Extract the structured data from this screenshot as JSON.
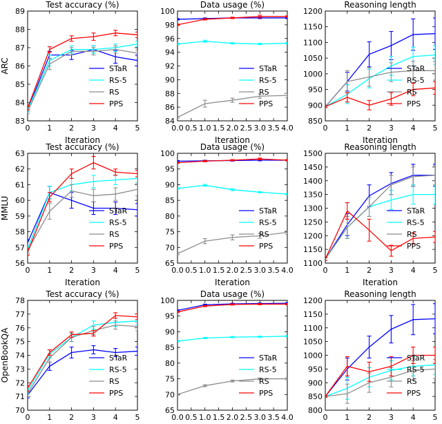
{
  "figure": {
    "row_labels": [
      "ARC",
      "MMLU",
      "OpenBookQA"
    ]
  },
  "legend": [
    {
      "name": "STaR",
      "color": "#0000ff"
    },
    {
      "name": "RS-5",
      "color": "#00ffff"
    },
    {
      "name": "RS",
      "color": "#8c8c8c"
    },
    {
      "name": "PPS",
      "color": "#ff0000"
    }
  ],
  "chart_data": [
    {
      "type": "line",
      "row_label": "ARC",
      "title": "Test accuracy (%)",
      "xlabel": "Iteration",
      "ylabel": "",
      "x": [
        0,
        1,
        2,
        3,
        4,
        5
      ],
      "xlim": [
        0,
        5
      ],
      "ylim": [
        83,
        89
      ],
      "xticks": [
        0,
        1,
        2,
        3,
        4,
        5
      ],
      "xtick_labels": [
        "0",
        "1",
        "2",
        "3",
        "4",
        "5"
      ],
      "yticks": [
        83,
        84,
        85,
        86,
        87,
        88,
        89
      ],
      "ytick_labels": [
        "83",
        "84",
        "85",
        "86",
        "87",
        "88",
        "89"
      ],
      "series": [
        {
          "name": "STaR",
          "values": [
            83.6,
            86.6,
            86.6,
            86.9,
            86.5,
            86.3
          ],
          "errors": [
            0.1,
            0.2,
            0.25,
            0.2,
            0.35,
            0.3
          ]
        },
        {
          "name": "RS-5",
          "values": [
            83.6,
            86.3,
            86.9,
            86.9,
            87.0,
            87.2
          ],
          "errors": [
            0.1,
            0.3,
            0.2,
            0.2,
            0.2,
            0.15
          ]
        },
        {
          "name": "RS",
          "values": [
            83.5,
            86.1,
            86.8,
            86.8,
            86.9,
            86.7
          ],
          "errors": [
            0.1,
            0.3,
            0.2,
            0.2,
            0.2,
            0.15
          ]
        },
        {
          "name": "PPS",
          "values": [
            83.7,
            86.9,
            87.5,
            87.6,
            87.8,
            87.7
          ],
          "errors": [
            0.1,
            0.15,
            0.15,
            0.2,
            0.15,
            0.15
          ]
        }
      ]
    },
    {
      "type": "line",
      "row_label": "ARC",
      "title": "Data usage (%)",
      "xlabel": "Iteration",
      "ylabel": "",
      "x": [
        0,
        1,
        2,
        3,
        4
      ],
      "xlim": [
        0,
        4
      ],
      "ylim": [
        84,
        100
      ],
      "xticks": [
        0,
        0.5,
        1,
        1.5,
        2,
        2.5,
        3,
        3.5,
        4
      ],
      "xtick_labels": [
        "0.0",
        "0.5",
        "1.0",
        "1.5",
        "2.0",
        "2.5",
        "3.0",
        "3.5",
        "4.0"
      ],
      "yticks": [
        84,
        86,
        88,
        90,
        92,
        94,
        96,
        98,
        100
      ],
      "ytick_labels": [
        "84",
        "86",
        "88",
        "90",
        "92",
        "94",
        "96",
        "98",
        "100"
      ],
      "series": [
        {
          "name": "STaR",
          "values": [
            98.8,
            98.9,
            99.0,
            99.0,
            99.0
          ],
          "errors": [
            0.1,
            0.1,
            0.1,
            0.1,
            0.1
          ]
        },
        {
          "name": "RS-5",
          "values": [
            95.2,
            95.6,
            95.3,
            95.2,
            95.3
          ],
          "errors": [
            0.1,
            0.15,
            0.1,
            0.1,
            0.1
          ]
        },
        {
          "name": "RS",
          "values": [
            84.5,
            86.5,
            87.0,
            87.6,
            87.7
          ],
          "errors": [
            0.1,
            0.5,
            0.3,
            0.3,
            0.3
          ]
        },
        {
          "name": "PPS",
          "values": [
            98.0,
            98.8,
            99.0,
            99.2,
            99.2
          ],
          "errors": [
            0.1,
            0.1,
            0.1,
            0.2,
            0.1
          ]
        }
      ]
    },
    {
      "type": "line",
      "row_label": "ARC",
      "title": "Reasoning length",
      "xlabel": "Iteration",
      "ylabel": "",
      "x": [
        0,
        1,
        2,
        3,
        4,
        5
      ],
      "xlim": [
        0,
        5
      ],
      "ylim": [
        850,
        1200
      ],
      "xticks": [
        0,
        1,
        2,
        3,
        4,
        5
      ],
      "xtick_labels": [
        "0",
        "1",
        "2",
        "3",
        "4",
        "5"
      ],
      "yticks": [
        850,
        900,
        950,
        1000,
        1050,
        1100,
        1150,
        1200
      ],
      "ytick_labels": [
        "850",
        "900",
        "950",
        "1000",
        "1050",
        "1100",
        "1150",
        "1200"
      ],
      "series": [
        {
          "name": "STaR",
          "values": [
            895,
            975,
            1062,
            1090,
            1125,
            1128
          ],
          "errors": [
            3,
            30,
            40,
            45,
            50,
            50
          ]
        },
        {
          "name": "RS-5",
          "values": [
            895,
            935,
            985,
            1025,
            1055,
            1060
          ],
          "errors": [
            3,
            30,
            30,
            30,
            30,
            30
          ]
        },
        {
          "name": "RS",
          "values": [
            895,
            975,
            990,
            1005,
            1010,
            1010
          ],
          "errors": [
            3,
            35,
            30,
            30,
            30,
            30
          ]
        },
        {
          "name": "PPS",
          "values": [
            895,
            925,
            900,
            920,
            950,
            955
          ],
          "errors": [
            3,
            15,
            15,
            20,
            20,
            20
          ]
        }
      ]
    },
    {
      "type": "line",
      "row_label": "MMLU",
      "title": "Test accuracy (%)",
      "xlabel": "Iteration",
      "ylabel": "",
      "x": [
        0,
        1,
        2,
        3,
        4,
        5
      ],
      "xlim": [
        0,
        5
      ],
      "ylim": [
        56,
        63
      ],
      "xticks": [
        0,
        1,
        2,
        3,
        4,
        5
      ],
      "xtick_labels": [
        "0",
        "1",
        "2",
        "3",
        "4",
        "5"
      ],
      "yticks": [
        56,
        57,
        58,
        59,
        60,
        61,
        62,
        63
      ],
      "ytick_labels": [
        "56",
        "57",
        "58",
        "59",
        "60",
        "61",
        "62",
        "63"
      ],
      "series": [
        {
          "name": "STaR",
          "values": [
            57.3,
            60.5,
            60.0,
            59.5,
            59.5,
            59.4
          ],
          "errors": [
            0.2,
            0.4,
            0.5,
            0.4,
            0.4,
            0.4
          ]
        },
        {
          "name": "RS-5",
          "values": [
            56.9,
            60.5,
            61.0,
            61.2,
            61.3,
            61.4
          ],
          "errors": [
            0.2,
            0.4,
            0.4,
            0.4,
            0.3,
            0.3
          ]
        },
        {
          "name": "RS",
          "values": [
            56.8,
            59.3,
            60.6,
            60.3,
            60.4,
            60.7
          ],
          "errors": [
            0.2,
            0.5,
            0.4,
            0.4,
            0.4,
            0.4
          ]
        },
        {
          "name": "PPS",
          "values": [
            56.7,
            60.2,
            61.7,
            62.4,
            61.8,
            61.7
          ],
          "errors": [
            0.2,
            0.3,
            0.3,
            0.4,
            0.2,
            0.2
          ]
        }
      ]
    },
    {
      "type": "line",
      "row_label": "MMLU",
      "title": "Data usage (%)",
      "xlabel": "Iteration",
      "ylabel": "",
      "x": [
        0,
        1,
        2,
        3,
        4
      ],
      "xlim": [
        0,
        4
      ],
      "ylim": [
        65,
        100
      ],
      "xticks": [
        0,
        0.5,
        1,
        1.5,
        2,
        2.5,
        3,
        3.5,
        4
      ],
      "xtick_labels": [
        "0.0",
        "0.5",
        "1.0",
        "1.5",
        "2.0",
        "2.5",
        "3.0",
        "3.5",
        "4.0"
      ],
      "yticks": [
        65,
        70,
        75,
        80,
        85,
        90,
        95,
        100
      ],
      "ytick_labels": [
        "65",
        "70",
        "75",
        "80",
        "85",
        "90",
        "95",
        "100"
      ],
      "series": [
        {
          "name": "STaR",
          "values": [
            97.5,
            97.6,
            97.7,
            97.8,
            97.8
          ],
          "errors": [
            0.2,
            0.2,
            0.2,
            0.2,
            0.2
          ]
        },
        {
          "name": "RS-5",
          "values": [
            88.8,
            89.8,
            88.4,
            87.6,
            87.0
          ],
          "errors": [
            0.2,
            0.3,
            0.3,
            0.2,
            0.2
          ]
        },
        {
          "name": "RS",
          "values": [
            68.0,
            72.0,
            73.2,
            73.7,
            74.8
          ],
          "errors": [
            0.3,
            0.8,
            0.8,
            0.8,
            0.6
          ]
        },
        {
          "name": "PPS",
          "values": [
            97.0,
            97.5,
            97.8,
            98.2,
            97.8
          ],
          "errors": [
            0.2,
            0.2,
            0.2,
            0.3,
            0.2
          ]
        }
      ]
    },
    {
      "type": "line",
      "row_label": "MMLU",
      "title": "Reasoning length",
      "xlabel": "Iteration",
      "ylabel": "",
      "x": [
        0,
        1,
        2,
        3,
        4,
        5
      ],
      "xlim": [
        0,
        5
      ],
      "ylim": [
        1100,
        1500
      ],
      "xticks": [
        0,
        1,
        2,
        3,
        4,
        5
      ],
      "xtick_labels": [
        "0",
        "1",
        "2",
        "3",
        "4",
        "5"
      ],
      "yticks": [
        1100,
        1150,
        1200,
        1250,
        1300,
        1350,
        1400,
        1450,
        1500
      ],
      "ytick_labels": [
        "1100",
        "1150",
        "1200",
        "1250",
        "1300",
        "1350",
        "1400",
        "1450",
        "1500"
      ],
      "series": [
        {
          "name": "STaR",
          "values": [
            1115,
            1240,
            1345,
            1390,
            1420,
            1420
          ],
          "errors": [
            5,
            40,
            40,
            40,
            40,
            40
          ]
        },
        {
          "name": "RS-5",
          "values": [
            1115,
            1230,
            1305,
            1330,
            1350,
            1350
          ],
          "errors": [
            5,
            40,
            35,
            35,
            35,
            35
          ]
        },
        {
          "name": "RS",
          "values": [
            1115,
            1230,
            1305,
            1385,
            1415,
            1420
          ],
          "errors": [
            5,
            40,
            35,
            35,
            35,
            35
          ]
        },
        {
          "name": "PPS",
          "values": [
            1115,
            1290,
            1220,
            1145,
            1190,
            1195
          ],
          "errors": [
            5,
            30,
            40,
            20,
            20,
            20
          ]
        }
      ]
    },
    {
      "type": "line",
      "row_label": "OpenBookQA",
      "title": "Test accuracy (%)",
      "xlabel": "Iteration",
      "ylabel": "",
      "x": [
        0,
        1,
        2,
        3,
        4,
        5
      ],
      "xlim": [
        0,
        5
      ],
      "ylim": [
        70,
        78
      ],
      "xticks": [
        0,
        1,
        2,
        3,
        4,
        5
      ],
      "xtick_labels": [
        "0",
        "1",
        "2",
        "3",
        "4",
        "5"
      ],
      "yticks": [
        70,
        71,
        72,
        73,
        74,
        75,
        76,
        77,
        78
      ],
      "ytick_labels": [
        "70",
        "71",
        "72",
        "73",
        "74",
        "75",
        "76",
        "77",
        "78"
      ],
      "series": [
        {
          "name": "STaR",
          "values": [
            71.1,
            73.2,
            74.2,
            74.4,
            74.2,
            74.3
          ],
          "errors": [
            0.2,
            0.3,
            0.4,
            0.3,
            0.3,
            0.3
          ]
        },
        {
          "name": "RS-5",
          "values": [
            71.4,
            74.1,
            75.3,
            76.2,
            76.4,
            76.5
          ],
          "errors": [
            0.2,
            0.3,
            0.3,
            0.3,
            0.3,
            0.3
          ]
        },
        {
          "name": "RS",
          "values": [
            71.2,
            73.8,
            75.3,
            75.8,
            76.2,
            76.1
          ],
          "errors": [
            0.2,
            0.3,
            0.3,
            0.3,
            0.3,
            0.3
          ]
        },
        {
          "name": "PPS",
          "values": [
            71.6,
            74.2,
            75.5,
            75.6,
            76.9,
            76.8
          ],
          "errors": [
            0.2,
            0.2,
            0.2,
            0.2,
            0.2,
            0.2
          ]
        }
      ]
    },
    {
      "type": "line",
      "row_label": "OpenBookQA",
      "title": "Data usage (%)",
      "xlabel": "Iteration",
      "ylabel": "",
      "x": [
        0,
        1,
        2,
        3,
        4
      ],
      "xlim": [
        0,
        4
      ],
      "ylim": [
        65,
        100
      ],
      "xticks": [
        0,
        0.5,
        1,
        1.5,
        2,
        2.5,
        3,
        3.5,
        4
      ],
      "xtick_labels": [
        "0.0",
        "0.5",
        "1.0",
        "1.5",
        "2.0",
        "2.5",
        "3.0",
        "3.5",
        "4.0"
      ],
      "yticks": [
        65,
        70,
        75,
        80,
        85,
        90,
        95,
        100
      ],
      "ytick_labels": [
        "65",
        "70",
        "75",
        "80",
        "85",
        "90",
        "95",
        "100"
      ],
      "series": [
        {
          "name": "STaR",
          "values": [
            96.8,
            98.6,
            98.9,
            99.0,
            99.1
          ],
          "errors": [
            0.2,
            0.2,
            0.2,
            0.2,
            0.2
          ]
        },
        {
          "name": "RS-5",
          "values": [
            87.0,
            88.0,
            88.3,
            88.4,
            88.6
          ],
          "errors": [
            0.2,
            0.2,
            0.2,
            0.2,
            0.2
          ]
        },
        {
          "name": "RS",
          "values": [
            70.0,
            72.8,
            74.3,
            75.0,
            75.0
          ],
          "errors": [
            0.2,
            0.3,
            0.3,
            0.3,
            0.3
          ]
        },
        {
          "name": "PPS",
          "values": [
            96.3,
            98.2,
            98.7,
            98.8,
            98.8
          ],
          "errors": [
            0.2,
            0.2,
            0.2,
            0.2,
            0.2
          ]
        }
      ]
    },
    {
      "type": "line",
      "row_label": "OpenBookQA",
      "title": "Reasoning length",
      "xlabel": "Iteration",
      "ylabel": "",
      "x": [
        0,
        1,
        2,
        3,
        4,
        5
      ],
      "xlim": [
        0,
        5
      ],
      "ylim": [
        800,
        1200
      ],
      "xticks": [
        0,
        1,
        2,
        3,
        4,
        5
      ],
      "xtick_labels": [
        "0",
        "1",
        "2",
        "3",
        "4",
        "5"
      ],
      "yticks": [
        800,
        850,
        900,
        950,
        1000,
        1050,
        1100,
        1150,
        1200
      ],
      "ytick_labels": [
        "800",
        "850",
        "900",
        "950",
        "1000",
        "1050",
        "1100",
        "1150",
        "1200"
      ],
      "series": [
        {
          "name": "STaR",
          "values": [
            850,
            950,
            1030,
            1095,
            1130,
            1133
          ],
          "errors": [
            3,
            40,
            40,
            50,
            55,
            55
          ]
        },
        {
          "name": "RS-5",
          "values": [
            850,
            880,
            920,
            945,
            960,
            965
          ],
          "errors": [
            3,
            40,
            35,
            35,
            35,
            35
          ]
        },
        {
          "name": "RS",
          "values": [
            850,
            860,
            900,
            920,
            945,
            950
          ],
          "errors": [
            3,
            35,
            35,
            35,
            35,
            35
          ]
        },
        {
          "name": "PPS",
          "values": [
            850,
            960,
            940,
            960,
            1000,
            1000
          ],
          "errors": [
            3,
            35,
            35,
            35,
            30,
            30
          ]
        }
      ]
    }
  ]
}
